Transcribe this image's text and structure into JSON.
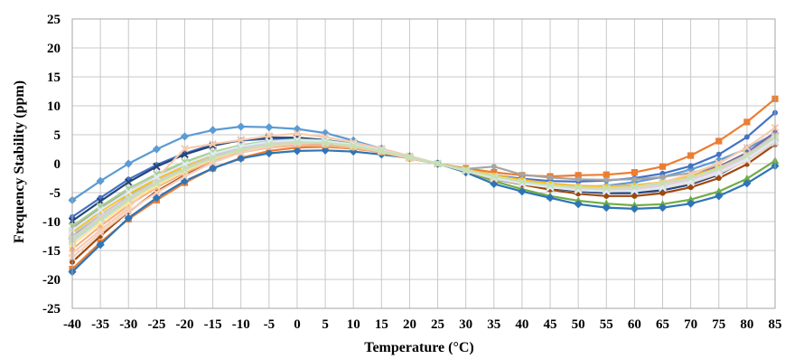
{
  "chart_data": {
    "type": "line",
    "title": "",
    "xlabel": "Temperature (°C)",
    "ylabel": "Frequency Stability (ppm)",
    "x": [
      -40,
      -35,
      -30,
      -25,
      -20,
      -15,
      -10,
      -5,
      0,
      5,
      10,
      15,
      20,
      25,
      30,
      35,
      40,
      45,
      50,
      55,
      60,
      65,
      70,
      75,
      80,
      85
    ],
    "xlim": [
      -40,
      85
    ],
    "ylim": [
      -25,
      25
    ],
    "y_ticks": [
      25,
      20,
      15,
      10,
      5,
      0,
      -5,
      -10,
      -15,
      -20,
      -25
    ],
    "grid": true,
    "legend": "none",
    "series": [
      {
        "color": "#5B9BD5",
        "marker": "diamond",
        "values": [
          -6.3,
          -3.0,
          0.0,
          2.5,
          4.7,
          5.8,
          6.4,
          6.3,
          6.0,
          5.3,
          4.0,
          2.6,
          1.3,
          0.0,
          -1.4,
          -2.7,
          -3.6,
          -4.0,
          -4.1,
          -3.8,
          -3.2,
          -2.3,
          -1.0,
          0.6,
          2.6,
          5.2
        ]
      },
      {
        "color": "#ED7D31",
        "marker": "square",
        "values": [
          -18.2,
          -13.6,
          -9.6,
          -6.3,
          -3.3,
          -0.8,
          1.0,
          2.2,
          2.8,
          2.9,
          2.6,
          2.0,
          1.1,
          0.0,
          -0.8,
          -1.5,
          -2.0,
          -2.2,
          -2.0,
          -1.9,
          -1.5,
          -0.5,
          1.4,
          3.9,
          7.2,
          11.2
        ]
      },
      {
        "color": "#4472C4",
        "marker": "circle",
        "values": [
          -9.2,
          -5.9,
          -2.7,
          -0.2,
          1.8,
          3.3,
          4.0,
          4.3,
          4.2,
          3.8,
          3.0,
          2.0,
          1.0,
          0.0,
          -1.0,
          -2.0,
          -2.6,
          -3.0,
          -3.1,
          -2.9,
          -2.5,
          -1.7,
          -0.4,
          1.6,
          4.6,
          8.8
        ]
      },
      {
        "color": "#A5A5A5",
        "marker": "circle",
        "values": [
          -11.2,
          -7.6,
          -4.8,
          -2.2,
          0.0,
          1.7,
          2.9,
          3.5,
          3.7,
          3.4,
          2.8,
          1.9,
          0.9,
          0.0,
          -0.9,
          -0.5,
          -1.9,
          -2.4,
          -2.7,
          -2.8,
          -2.7,
          -2.3,
          -1.6,
          -0.4,
          1.1,
          3.3
        ]
      },
      {
        "color": "#70AD47",
        "marker": "triangle",
        "values": [
          -12.5,
          -9.0,
          -5.6,
          -3.0,
          -0.8,
          1.2,
          2.6,
          3.4,
          3.6,
          3.4,
          2.9,
          2.0,
          1.0,
          0.0,
          -1.3,
          -3.0,
          -4.4,
          -5.6,
          -6.4,
          -6.9,
          -7.2,
          -7.0,
          -6.2,
          -4.8,
          -2.6,
          0.5
        ]
      },
      {
        "color": "#2E75B6",
        "marker": "diamond",
        "values": [
          -18.7,
          -14.0,
          -9.4,
          -5.9,
          -3.0,
          -0.8,
          0.9,
          1.8,
          2.2,
          2.3,
          2.1,
          1.6,
          1.0,
          0.0,
          -1.5,
          -3.5,
          -4.8,
          -5.9,
          -7.0,
          -7.6,
          -7.8,
          -7.6,
          -6.9,
          -5.6,
          -3.4,
          -0.4
        ]
      },
      {
        "color": "#264478",
        "marker": "cross",
        "values": [
          -9.9,
          -6.5,
          -3.2,
          -0.5,
          1.6,
          3.1,
          4.1,
          4.5,
          4.5,
          4.1,
          3.4,
          2.3,
          1.1,
          0.0,
          -1.2,
          -2.3,
          -3.4,
          -4.2,
          -4.8,
          -5.1,
          -5.1,
          -4.6,
          -3.6,
          -1.9,
          0.7,
          4.3
        ]
      },
      {
        "color": "#9E480E",
        "marker": "circle",
        "values": [
          -17.0,
          -12.5,
          -8.3,
          -4.8,
          -2.0,
          0.4,
          2.0,
          3.0,
          3.4,
          3.3,
          2.8,
          1.9,
          0.9,
          0.0,
          -1.2,
          -2.5,
          -3.6,
          -4.5,
          -5.2,
          -5.6,
          -5.6,
          -5.1,
          -4.1,
          -2.5,
          -0.1,
          3.3
        ]
      },
      {
        "color": "#8064A2",
        "marker": "circle",
        "values": [
          -13.0,
          -9.4,
          -6.0,
          -3.2,
          -0.8,
          1.2,
          2.6,
          3.5,
          3.8,
          3.6,
          3.0,
          2.1,
          1.0,
          0.0,
          -1.1,
          -2.1,
          -3.0,
          -3.7,
          -4.1,
          -4.2,
          -4.0,
          -3.3,
          -2.2,
          -0.5,
          1.9,
          5.4
        ]
      },
      {
        "color": "#F4B183",
        "marker": "circle",
        "values": [
          -14.8,
          -10.8,
          -7.2,
          -4.1,
          -1.6,
          0.5,
          1.9,
          2.8,
          3.2,
          3.1,
          2.7,
          1.9,
          0.9,
          0.0,
          -1.0,
          -2.0,
          -2.8,
          -3.4,
          -3.8,
          -3.9,
          -3.7,
          -3.2,
          -2.2,
          -0.7,
          1.5,
          4.6
        ]
      },
      {
        "color": "#FFC000",
        "marker": "circle",
        "values": [
          -11.8,
          -8.3,
          -5.2,
          -2.6,
          -0.4,
          1.4,
          2.7,
          3.5,
          3.8,
          3.6,
          3.0,
          2.1,
          1.0,
          0.0,
          -1.0,
          -2.0,
          -2.9,
          -3.5,
          -3.9,
          -4.0,
          -3.8,
          -3.2,
          -2.2,
          -0.7,
          1.5,
          4.6
        ]
      },
      {
        "color": "#BDD7EE",
        "marker": "cross",
        "values": [
          -13.5,
          -9.8,
          -6.4,
          -3.4,
          -1.0,
          1.0,
          2.5,
          3.4,
          3.8,
          3.6,
          3.1,
          2.2,
          1.0,
          0.0,
          -1.1,
          -2.2,
          -3.1,
          -3.8,
          -4.2,
          -4.4,
          -4.3,
          -3.8,
          -2.9,
          -1.4,
          0.6,
          3.6
        ]
      },
      {
        "color": "#A9D18E",
        "marker": "cross",
        "values": [
          -10.8,
          -7.4,
          -4.3,
          -1.8,
          0.3,
          2.0,
          3.2,
          3.9,
          4.2,
          4.0,
          3.4,
          2.4,
          1.2,
          0.0,
          -1.2,
          -2.4,
          -3.4,
          -4.1,
          -4.5,
          -4.7,
          -4.5,
          -3.9,
          -2.8,
          -1.1,
          1.3,
          4.6
        ]
      },
      {
        "color": "#F8CBAD",
        "marker": "cross",
        "values": [
          -15.5,
          -11.5,
          -7.7,
          -2.5,
          2.6,
          3.4,
          4.1,
          4.8,
          5.2,
          4.6,
          3.7,
          2.6,
          1.3,
          0.0,
          -1.3,
          -2.6,
          -3.5,
          -4.1,
          -4.4,
          -4.4,
          -4.0,
          -3.2,
          -1.8,
          0.1,
          2.8,
          6.2
        ]
      },
      {
        "color": "#C9C9C9",
        "marker": "cross",
        "values": [
          -12.2,
          -8.8,
          -5.7,
          -3.0,
          -0.7,
          1.3,
          2.8,
          3.7,
          4.1,
          3.9,
          3.3,
          2.3,
          1.1,
          0.0,
          -1.2,
          -2.4,
          -3.3,
          -3.9,
          -4.3,
          -4.4,
          -4.2,
          -3.6,
          -2.5,
          -0.8,
          1.6,
          4.9
        ]
      },
      {
        "color": "#FFE699",
        "marker": "cross",
        "values": [
          -14.0,
          -10.2,
          -6.8,
          -3.8,
          -1.3,
          0.8,
          2.3,
          3.2,
          3.6,
          3.5,
          3.0,
          2.1,
          1.0,
          0.0,
          -1.1,
          -2.2,
          -3.1,
          -3.8,
          -4.2,
          -4.4,
          -4.3,
          -3.7,
          -2.7,
          -1.1,
          1.1,
          4.3
        ]
      },
      {
        "color": "#E7C9E3",
        "marker": "cross",
        "values": [
          -12.8,
          -9.2,
          -6.0,
          -3.3,
          -1.0,
          1.0,
          2.5,
          3.4,
          3.8,
          3.7,
          3.1,
          2.2,
          1.1,
          0.0,
          -1.1,
          -2.3,
          -3.2,
          -3.9,
          -4.3,
          -4.5,
          -4.4,
          -3.8,
          -2.8,
          -1.2,
          1.1,
          4.3
        ]
      },
      {
        "color": "#F4D0C0",
        "marker": "cross",
        "values": [
          -16.2,
          -12.0,
          -8.2,
          -5.0,
          -2.2,
          0.2,
          1.9,
          3.0,
          3.5,
          3.5,
          3.0,
          2.1,
          1.0,
          0.0,
          -1.1,
          -2.2,
          -3.2,
          -3.9,
          -4.4,
          -4.7,
          -4.7,
          -4.2,
          -3.3,
          -1.7,
          0.5,
          3.8
        ]
      },
      {
        "color": "#DDEBF7",
        "marker": "cross",
        "values": [
          -11.5,
          -8.0,
          -4.9,
          -2.3,
          -0.1,
          1.7,
          3.0,
          3.8,
          4.1,
          3.9,
          3.3,
          2.3,
          1.1,
          0.0,
          -1.2,
          -2.4,
          -3.4,
          -4.1,
          -4.6,
          -4.8,
          -4.7,
          -4.1,
          -3.1,
          -1.5,
          0.8,
          4.1
        ]
      },
      {
        "color": "#C5E0B4",
        "marker": "cross",
        "values": [
          -13.2,
          -9.5,
          -6.2,
          -3.4,
          -1.0,
          1.0,
          2.4,
          3.3,
          3.7,
          3.6,
          3.1,
          2.2,
          1.1,
          0.0,
          -1.1,
          -2.2,
          -3.1,
          -3.7,
          -4.1,
          -4.2,
          -4.0,
          -3.4,
          -2.4,
          -0.8,
          1.4,
          4.6
        ]
      }
    ]
  }
}
